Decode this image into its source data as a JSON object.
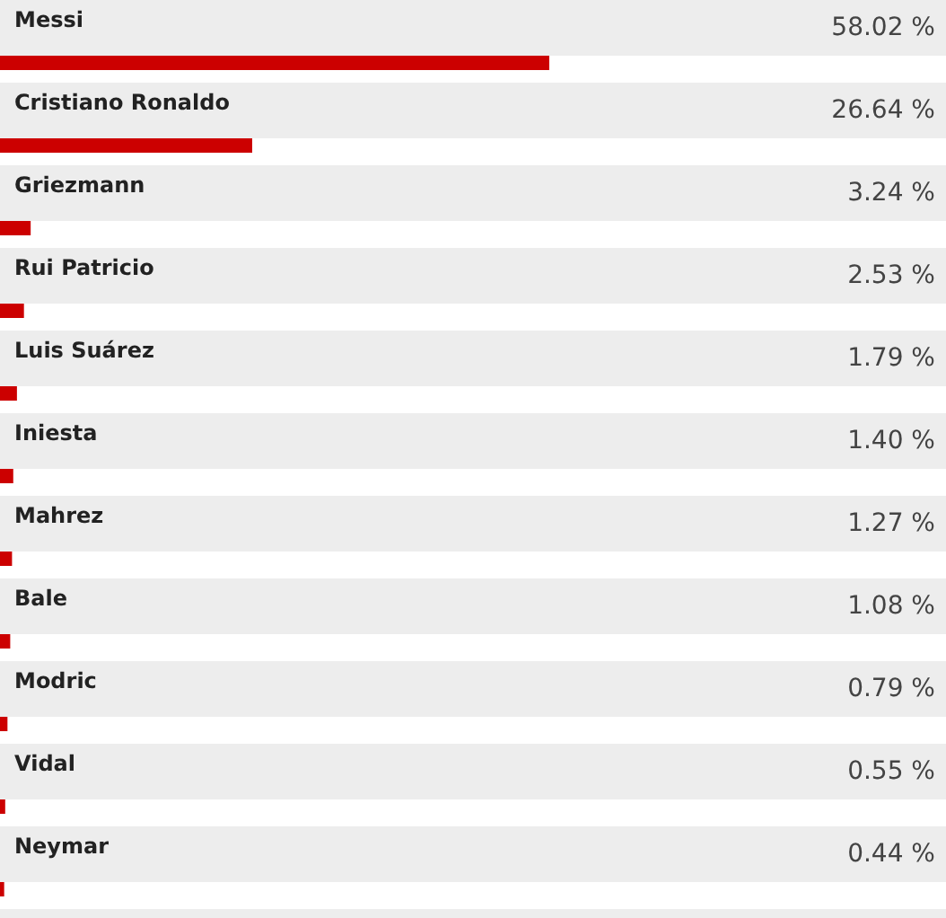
{
  "chart_data": {
    "type": "bar",
    "orientation": "horizontal",
    "categories": [
      "Messi",
      "Cristiano Ronaldo",
      "Griezmann",
      "Rui Patricio",
      "Luis Suárez",
      "Iniesta",
      "Mahrez",
      "Bale",
      "Modric",
      "Vidal",
      "Neymar"
    ],
    "values": [
      58.02,
      26.64,
      3.24,
      2.53,
      1.79,
      1.4,
      1.27,
      1.08,
      0.79,
      0.55,
      0.44
    ],
    "value_labels": [
      "58.02 %",
      "26.64 %",
      "3.24 %",
      "2.53 %",
      "1.79 %",
      "1.40 %",
      "1.27 %",
      "1.08 %",
      "0.79 %",
      "0.55 %",
      "0.44 %"
    ],
    "color": "#cc0000",
    "tick_labels": "y"
  }
}
